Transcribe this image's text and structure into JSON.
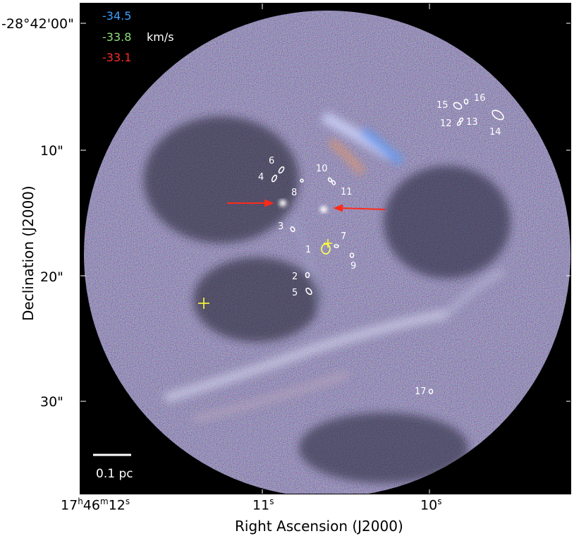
{
  "velocity_legend": {
    "blue_value": "-34.5",
    "green_value": "-33.8",
    "red_value": "-33.1",
    "unit": "km/s",
    "colors": {
      "blue": "#3aa0ff",
      "green": "#8fe07a",
      "red": "#ff2a2a"
    }
  },
  "y_axis": {
    "title": "Declination (J2000)",
    "ticks": [
      "-28°42'00\"",
      "10\"",
      "20\"",
      "30\""
    ]
  },
  "x_axis": {
    "title": "Right Ascension (J2000)",
    "ticks": {
      "t1_h": "17",
      "t1_m": "46",
      "t1_s": "12",
      "t2": "11",
      "t3": "10"
    },
    "tick_units": {
      "h": "h",
      "m": "m",
      "s": "s"
    }
  },
  "scale_bar": {
    "label": "0.1 pc"
  },
  "sources": {
    "s1": "1",
    "s2": "2",
    "s3": "3",
    "s4": "4",
    "s5": "5",
    "s6": "6",
    "s7": "7",
    "s8": "8",
    "s9": "9",
    "s10": "10",
    "s11": "11",
    "s12": "12",
    "s13": "13",
    "s14": "14",
    "s15": "15",
    "s16": "16",
    "s17": "17"
  },
  "colors": {
    "ellipse": "#ffffff",
    "cross": "#ffff33",
    "arrow": "#ff2a1a"
  }
}
